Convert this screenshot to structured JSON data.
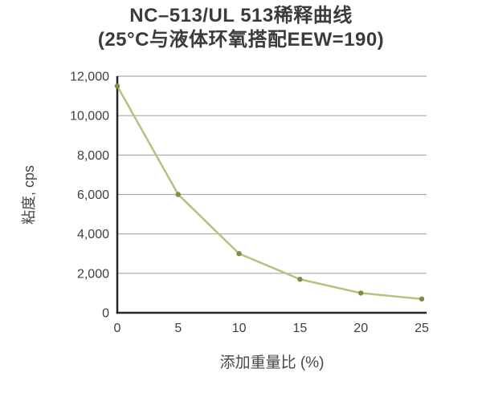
{
  "title": {
    "line1": "NC–513/UL 513稀释曲线",
    "line2": "(25°C与液体环氧搭配EEW=190)"
  },
  "chart_data": {
    "type": "line",
    "title": "NC–513/UL 513稀释曲线 (25°C与液体环氧搭配EEW=190)",
    "xlabel": "添加重量比 (%)",
    "ylabel": "粘度, cps",
    "x": [
      0,
      5,
      10,
      15,
      20,
      25
    ],
    "series": [
      {
        "name": "粘度",
        "values": [
          11500,
          6000,
          3000,
          1700,
          1000,
          700
        ]
      }
    ],
    "xlim": [
      0,
      25
    ],
    "ylim": [
      0,
      12000
    ],
    "xticks": {
      "values": [
        0,
        5,
        10,
        15,
        20,
        25
      ],
      "labels": [
        "0",
        "5",
        "10",
        "15",
        "20",
        "25"
      ]
    },
    "yticks": {
      "values": [
        0,
        2000,
        4000,
        6000,
        8000,
        10000,
        12000
      ],
      "labels": [
        "0",
        "2,000",
        "4,000",
        "6,000",
        "8,000",
        "10,000",
        "12,000"
      ]
    },
    "grid": "horizontal",
    "legend": "none",
    "colors": {
      "line": "#b6c17d",
      "marker": "#7c8e44",
      "grid": "#a8a8a8",
      "axis": "#262626",
      "tick_text": "#3f3f3f",
      "title_text": "#3b3b3b",
      "background": "#ffffff"
    }
  }
}
